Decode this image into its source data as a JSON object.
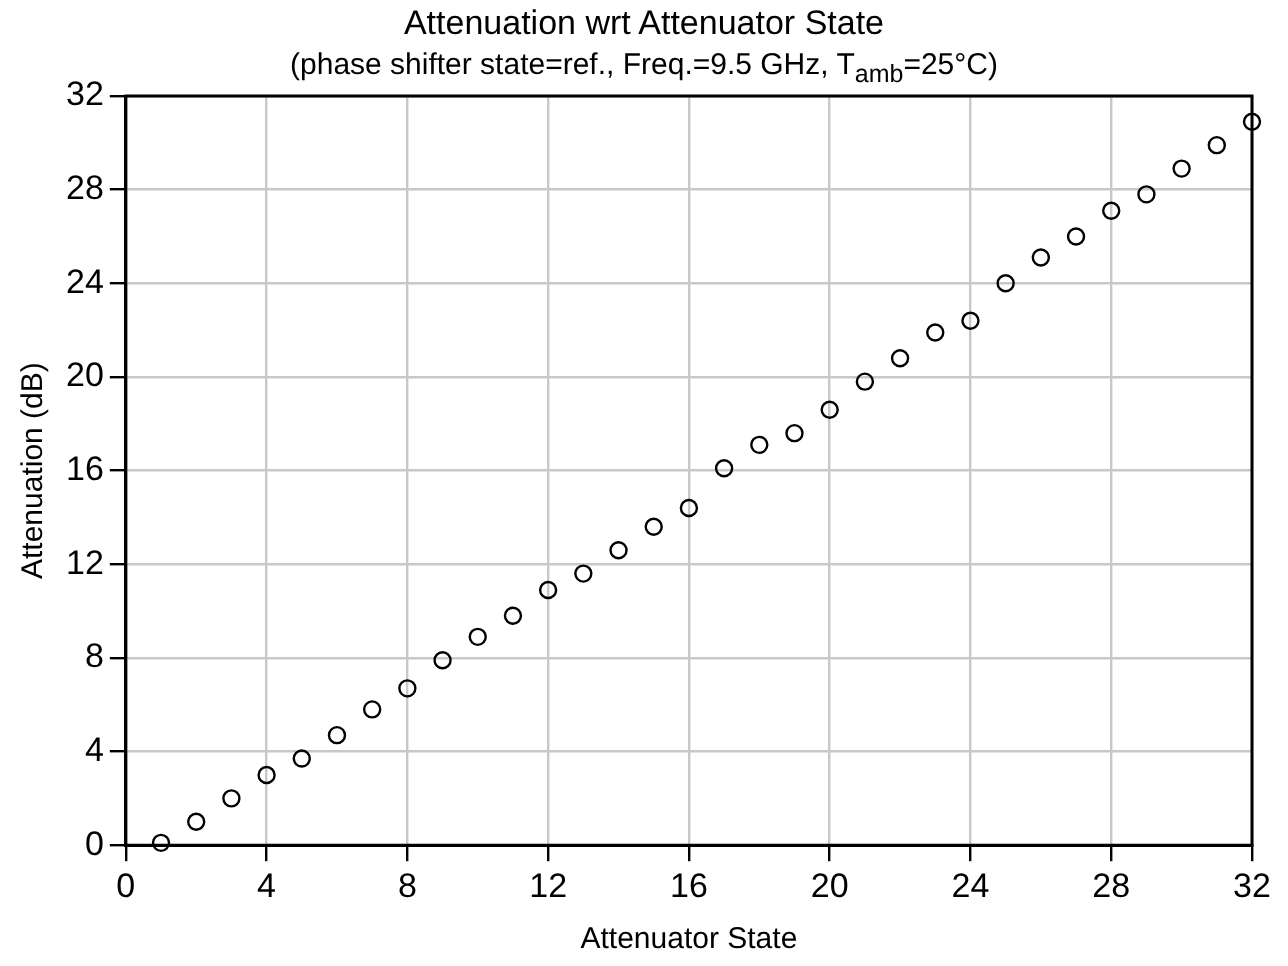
{
  "chart_data": {
    "type": "scatter",
    "title": "Attenuation wrt Attenuator State",
    "subtitle": "(phase shifter state=ref., Freq.=9.5 GHz, T$_{amb}$=25°C)",
    "xlabel": "Attenuator State",
    "ylabel": "Attenuation (dB)",
    "x": [
      1,
      2,
      3,
      4,
      5,
      6,
      7,
      8,
      9,
      10,
      11,
      12,
      13,
      14,
      15,
      16,
      17,
      18,
      19,
      20,
      21,
      22,
      23,
      24,
      25,
      26,
      27,
      28,
      29,
      30,
      31,
      32
    ],
    "series": [
      {
        "color": "#000000",
        "values": [
          0.1,
          1.0,
          2.0,
          3.0,
          3.7,
          4.7,
          5.8,
          6.7,
          7.9,
          8.9,
          9.8,
          10.9,
          11.6,
          12.6,
          13.6,
          14.4,
          16.1,
          17.1,
          17.6,
          18.6,
          19.8,
          20.8,
          21.9,
          22.4,
          24.0,
          25.1,
          26.0,
          27.1,
          27.8,
          28.9,
          29.9,
          30.9
        ]
      }
    ],
    "xlim": [
      0,
      32
    ],
    "xticks": [
      0,
      4,
      8,
      12,
      16,
      20,
      24,
      28,
      32
    ],
    "ylim": [
      0,
      32
    ],
    "yticks": [
      0,
      4,
      8,
      12,
      16,
      20,
      24,
      28,
      32
    ],
    "grid": true,
    "legend": false,
    "marker": "circle"
  }
}
